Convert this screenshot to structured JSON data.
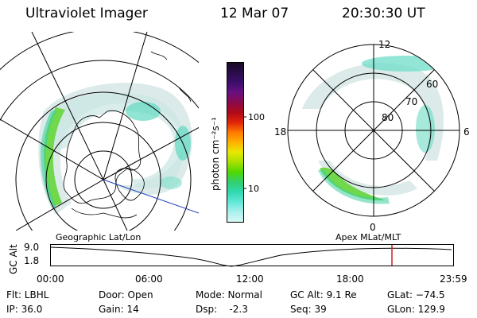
{
  "header": {
    "title": "Ultraviolet Imager",
    "date": "12 Mar 07",
    "time": "20:30:30 UT"
  },
  "colorbar": {
    "label": "photon cm⁻²s⁻¹",
    "ticks": [
      "100",
      "10"
    ],
    "colors": [
      "#1a0a24",
      "#2a0c4a",
      "#3c0e6a",
      "#6a1080",
      "#8a0a4a",
      "#b00a1a",
      "#e0240a",
      "#ff7a00",
      "#ffb000",
      "#e8e800",
      "#a8e000",
      "#50d800",
      "#30d070",
      "#30d8b0",
      "#60e8d8",
      "#a8f0ec",
      "#d8f8f6"
    ]
  },
  "polar": {
    "labels": {
      "top": "12",
      "left": "18",
      "right": "6",
      "bottom": "0"
    },
    "rings": [
      "80",
      "70",
      "60"
    ]
  },
  "timeline": {
    "left_title": "Geographic Lat/Lon",
    "right_title": "Apex MLat/MLT",
    "axis_label": "GC Alt",
    "y_ticks": [
      "9.0",
      "1.8"
    ],
    "x_ticks": [
      "00:00",
      "06:00",
      "12:00",
      "18:00",
      "23:59"
    ],
    "marker_color": "#cc2020"
  },
  "footer": {
    "row1": [
      "Flt: LBHL",
      "Door: Open",
      "Mode: Normal",
      "GC Alt: 9.1 Re",
      "GLat: −74.5"
    ],
    "row2": [
      "IP: 36.0",
      "Gain: 14",
      "Dsp:    -2.3",
      "Seq: 39",
      "GLon: 129.9"
    ]
  }
}
